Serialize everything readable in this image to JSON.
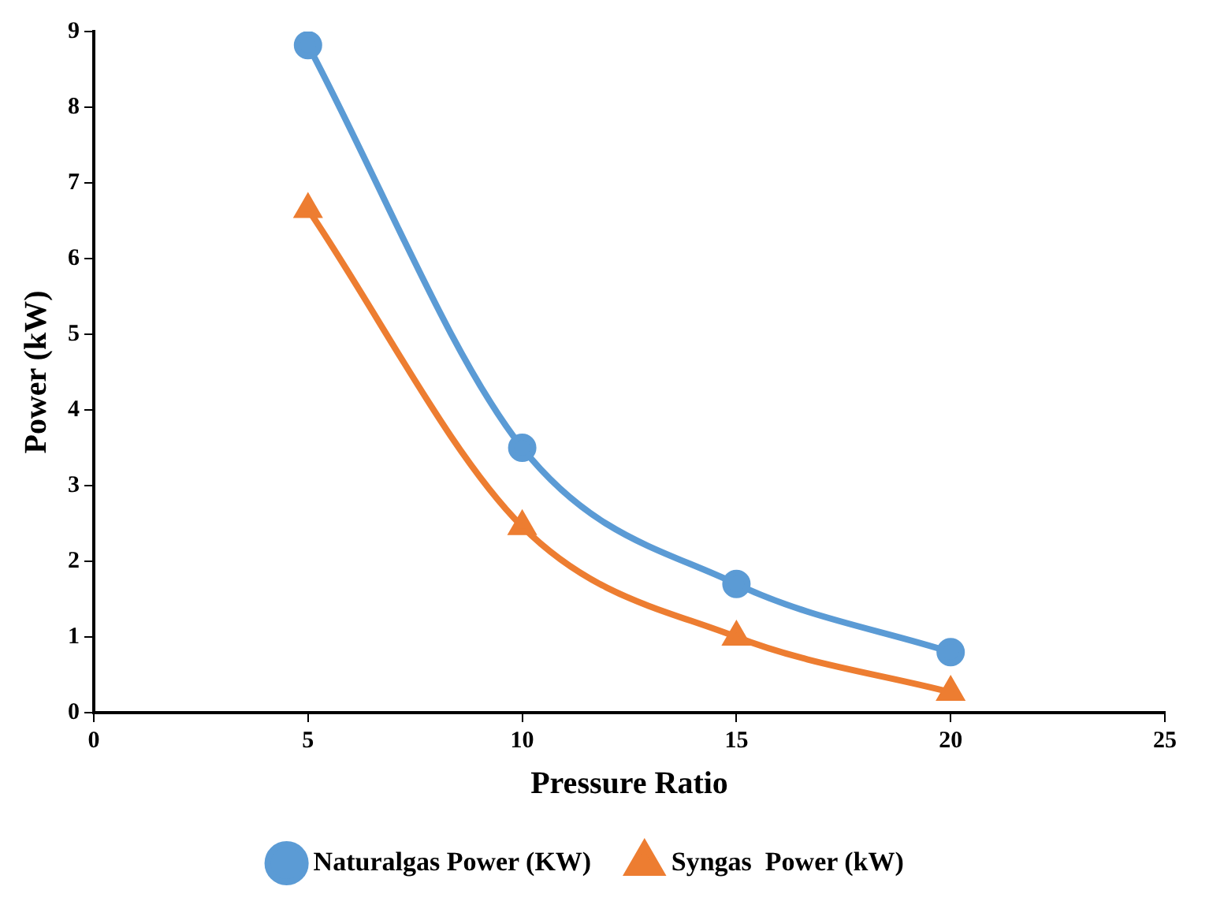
{
  "chart_data": {
    "type": "line",
    "xlabel": "Pressure Ratio",
    "ylabel": "Power (kW)",
    "x": [
      5,
      10,
      15,
      20
    ],
    "series": [
      {
        "name": "Naturalgas Power (KW)",
        "color": "#5b9bd5",
        "marker": "circle",
        "values": [
          8.82,
          3.5,
          1.7,
          0.8
        ]
      },
      {
        "name": "Syngas  Power (kW)",
        "color": "#ed7d31",
        "marker": "triangle",
        "values": [
          6.65,
          2.46,
          1.0,
          0.27
        ]
      }
    ],
    "xlim": [
      0,
      25
    ],
    "xticks": [
      0,
      5,
      10,
      15,
      20,
      25
    ],
    "ylim": [
      0,
      9
    ],
    "yticks": [
      0,
      1,
      2,
      3,
      4,
      5,
      6,
      7,
      8,
      9
    ],
    "grid": false,
    "legend": "bottom"
  }
}
